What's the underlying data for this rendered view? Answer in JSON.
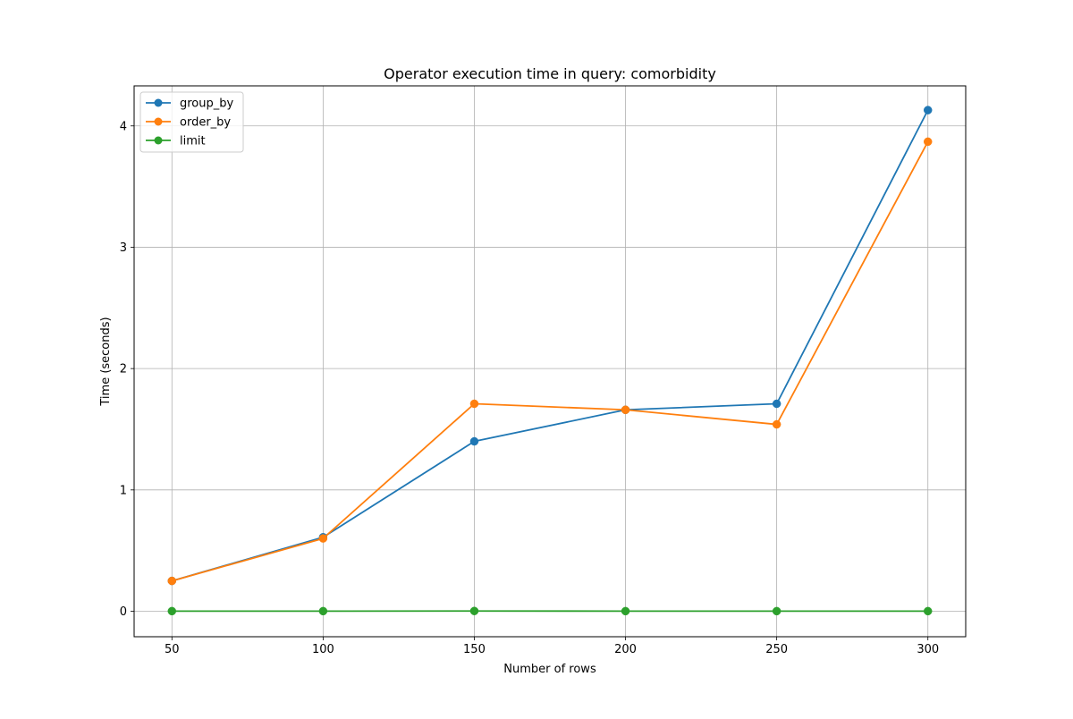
{
  "chart_data": {
    "type": "line",
    "title": "Operator execution time in query: comorbidity",
    "xlabel": "Number of rows",
    "ylabel": "Time (seconds)",
    "x": [
      50,
      100,
      150,
      200,
      250,
      300
    ],
    "xticks": [
      50,
      100,
      150,
      200,
      250,
      300
    ],
    "yticks": [
      0,
      1,
      2,
      3,
      4
    ],
    "xlim": [
      37.5,
      312.5
    ],
    "ylim": [
      -0.21,
      4.33
    ],
    "grid": true,
    "legend_position": "upper left",
    "marker": "circle",
    "series": [
      {
        "name": "group_by",
        "color": "#1f77b4",
        "values": [
          0.25,
          0.61,
          1.4,
          1.66,
          1.71,
          4.13
        ]
      },
      {
        "name": "order_by",
        "color": "#ff7f0e",
        "values": [
          0.25,
          0.6,
          1.71,
          1.66,
          1.54,
          3.87
        ]
      },
      {
        "name": "limit",
        "color": "#2ca02c",
        "values": [
          0.001,
          0.001,
          0.002,
          0.001,
          0.001,
          0.001
        ]
      }
    ]
  }
}
